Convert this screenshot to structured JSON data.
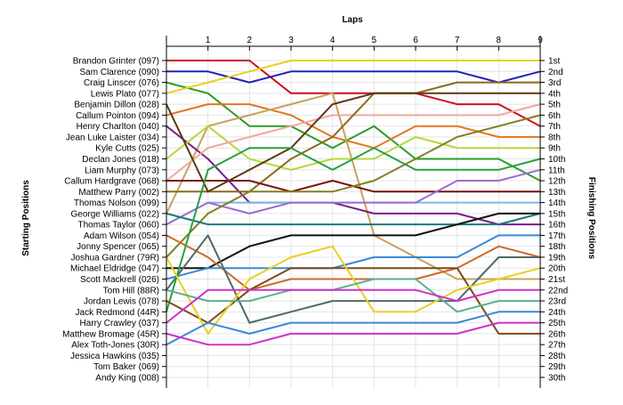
{
  "chart_data": {
    "type": "line",
    "title": "",
    "xlabel": "Laps",
    "ylabel_left": "Starting Positions",
    "ylabel_right": "Finishing Positions",
    "x": [
      0,
      1,
      2,
      3,
      4,
      5,
      6,
      7,
      8,
      9
    ],
    "x_tick_labels": [
      "1",
      "2",
      "3",
      "4",
      "5",
      "6",
      "7",
      "8",
      "9"
    ],
    "xlim": [
      0,
      9
    ],
    "ylim": [
      1,
      30
    ],
    "y_inverted": true,
    "grid": true,
    "starting_labels": [
      "Brandon Grinter (097)",
      "Sam Clarence (090)",
      "Craig Linscer (076)",
      "Lewis Plato (077)",
      "Benjamin Dillon (028)",
      "Callum Pointon (094)",
      "Henry Charlton (040)",
      "Jean Luke Laister (034)",
      "Kyle Cutts (025)",
      "Declan Jones (018)",
      "Liam Murphy (073)",
      "Callum Hardgrave (068)",
      "Matthew Parry (002)",
      "Thomas Nolson (099)",
      "George Williams (022)",
      "Thomas Taylor (060)",
      "Adam Wilson (054)",
      "Jonny Spencer (065)",
      "Joshua Gardner (79R)",
      "Michael Eldridge (047)",
      "Scott Mackrell (026)",
      "Tom Hill (88R)",
      "Jordan Lewis (078)",
      "Jack Redmond (44R)",
      "Harry Crawley (037)",
      "Matthew Bromage (45R)",
      "Alex Toth-Jones (30R)",
      "Jessica Hawkins (035)",
      "Tom Baker (069)",
      "Andy King (008)"
    ],
    "finishing_labels": [
      "1st",
      "2nd",
      "3rd",
      "4th",
      "5th",
      "6th",
      "7th",
      "8th",
      "9th",
      "10th",
      "11th",
      "12th",
      "13th",
      "14th",
      "15th",
      "16th",
      "17th",
      "18th",
      "19th",
      "20th",
      "21st",
      "22nd",
      "23rd",
      "24th",
      "25th",
      "26th",
      "27th",
      "28th",
      "29th",
      "30th"
    ],
    "series": [
      {
        "color": "#cc1020",
        "values": [
          1,
          1,
          1,
          4,
          4,
          4,
          4,
          5,
          5,
          7
        ]
      },
      {
        "color": "#2323b4",
        "values": [
          2,
          2,
          3,
          2,
          2,
          2,
          2,
          2,
          3,
          2
        ]
      },
      {
        "color": "#2a9d2a",
        "values": [
          3,
          4,
          7,
          7,
          9,
          7,
          10,
          10,
          10,
          12
        ]
      },
      {
        "color": "#e8d020",
        "values": [
          4,
          3,
          2,
          1,
          1,
          1,
          1,
          1,
          1,
          1
        ]
      },
      {
        "color": "#e07820",
        "values": [
          6,
          5,
          5,
          6,
          8,
          9,
          7,
          7,
          8,
          8
        ]
      },
      {
        "color": "#c9a05a",
        "values": [
          15,
          7,
          6,
          5,
          4,
          17,
          19,
          21,
          21,
          21
        ]
      },
      {
        "color": "#7a1c8c",
        "values": [
          7,
          10,
          14,
          14,
          14,
          15,
          15,
          15,
          16,
          16
        ]
      },
      {
        "color": "#b8d63c",
        "values": [
          10,
          7,
          10,
          11,
          10,
          10,
          8,
          9,
          9,
          9
        ]
      },
      {
        "color": "#f0a8a0",
        "values": [
          12,
          9,
          8,
          7,
          6,
          6,
          6,
          6,
          6,
          5
        ]
      },
      {
        "color": "#8a6a1c",
        "values": [
          13,
          13,
          13,
          10,
          8,
          4,
          4,
          3,
          3,
          3
        ]
      },
      {
        "color": "#7ab8e8",
        "values": [
          16,
          14,
          14,
          14,
          14,
          14,
          14,
          14,
          14,
          14
        ]
      },
      {
        "color": "#7a1010",
        "values": [
          12,
          12,
          12,
          13,
          12,
          13,
          13,
          13,
          13,
          13
        ]
      },
      {
        "color": "#9a6ed0",
        "values": [
          16,
          14,
          15,
          14,
          14,
          14,
          14,
          12,
          12,
          11
        ]
      },
      {
        "color": "#5a3a10",
        "values": [
          5,
          13,
          11,
          9,
          5,
          4,
          4,
          4,
          4,
          4
        ]
      },
      {
        "color": "#808020",
        "values": [
          19,
          15,
          13,
          13,
          13,
          12,
          10,
          8,
          7,
          6
        ]
      },
      {
        "color": "#1a7a7a",
        "values": [
          15,
          16,
          16,
          16,
          16,
          16,
          16,
          16,
          16,
          15
        ]
      },
      {
        "color": "#111111",
        "values": [
          20,
          20,
          18,
          17,
          17,
          17,
          17,
          16,
          15,
          15
        ]
      },
      {
        "color": "#cc6a2a",
        "values": [
          17,
          19,
          22,
          21,
          21,
          21,
          21,
          20,
          18,
          19
        ]
      },
      {
        "color": "#3a88d8",
        "values": [
          21,
          20,
          20,
          20,
          20,
          19,
          19,
          19,
          17,
          17
        ]
      },
      {
        "color": "#506a6a",
        "values": [
          22,
          17,
          25,
          24,
          23,
          23,
          23,
          23,
          19,
          19
        ]
      },
      {
        "color": "#2aa040",
        "values": [
          24,
          11,
          9,
          9,
          11,
          9,
          11,
          11,
          11,
          10
        ]
      },
      {
        "color": "#7c4a1a",
        "values": [
          23,
          25,
          22,
          20,
          20,
          20,
          20,
          20,
          26,
          26
        ]
      },
      {
        "color": "#e8d020",
        "values": [
          19,
          26,
          21,
          19,
          18,
          24,
          24,
          22,
          21,
          20
        ]
      },
      {
        "color": "#5ab090",
        "values": [
          22,
          23,
          23,
          22,
          22,
          21,
          21,
          24,
          23,
          23
        ]
      },
      {
        "color": "#d030c8",
        "values": [
          25,
          22,
          22,
          22,
          22,
          22,
          22,
          23,
          22,
          22
        ]
      },
      {
        "color": "#3a88d8",
        "values": [
          27,
          25,
          26,
          25,
          25,
          25,
          25,
          25,
          24,
          24
        ]
      },
      {
        "color": "#d030c8",
        "values": [
          26,
          27,
          27,
          26,
          26,
          26,
          26,
          26,
          25,
          25
        ]
      }
    ]
  }
}
